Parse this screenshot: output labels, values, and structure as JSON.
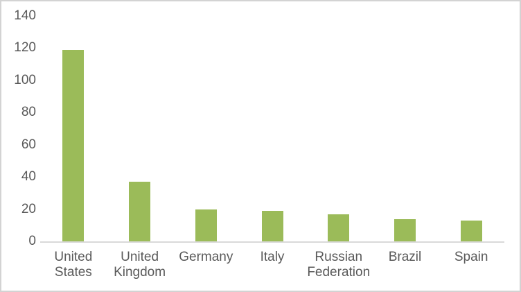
{
  "chart_data": {
    "type": "bar",
    "categories": [
      "United States",
      "United Kingdom",
      "Germany",
      "Italy",
      "Russian Federation",
      "Brazil",
      "Spain"
    ],
    "category_label_lines": [
      "United\nStates",
      "United\nKingdom",
      "Germany",
      "Italy",
      "Russian\nFederation",
      "Brazil",
      "Spain"
    ],
    "values": [
      119,
      37,
      20,
      19,
      17,
      14,
      13
    ],
    "title": "",
    "xlabel": "",
    "ylabel": "",
    "ylim": [
      0,
      140
    ],
    "yticks": [
      0,
      20,
      40,
      60,
      80,
      100,
      120,
      140
    ],
    "grid": false,
    "legend": false,
    "colors": {
      "bar": "#9bbb59",
      "axis_line": "#d9d9d9",
      "tick_label": "#595959",
      "frame_border": "#d3d3d3",
      "background": "#ffffff"
    }
  }
}
